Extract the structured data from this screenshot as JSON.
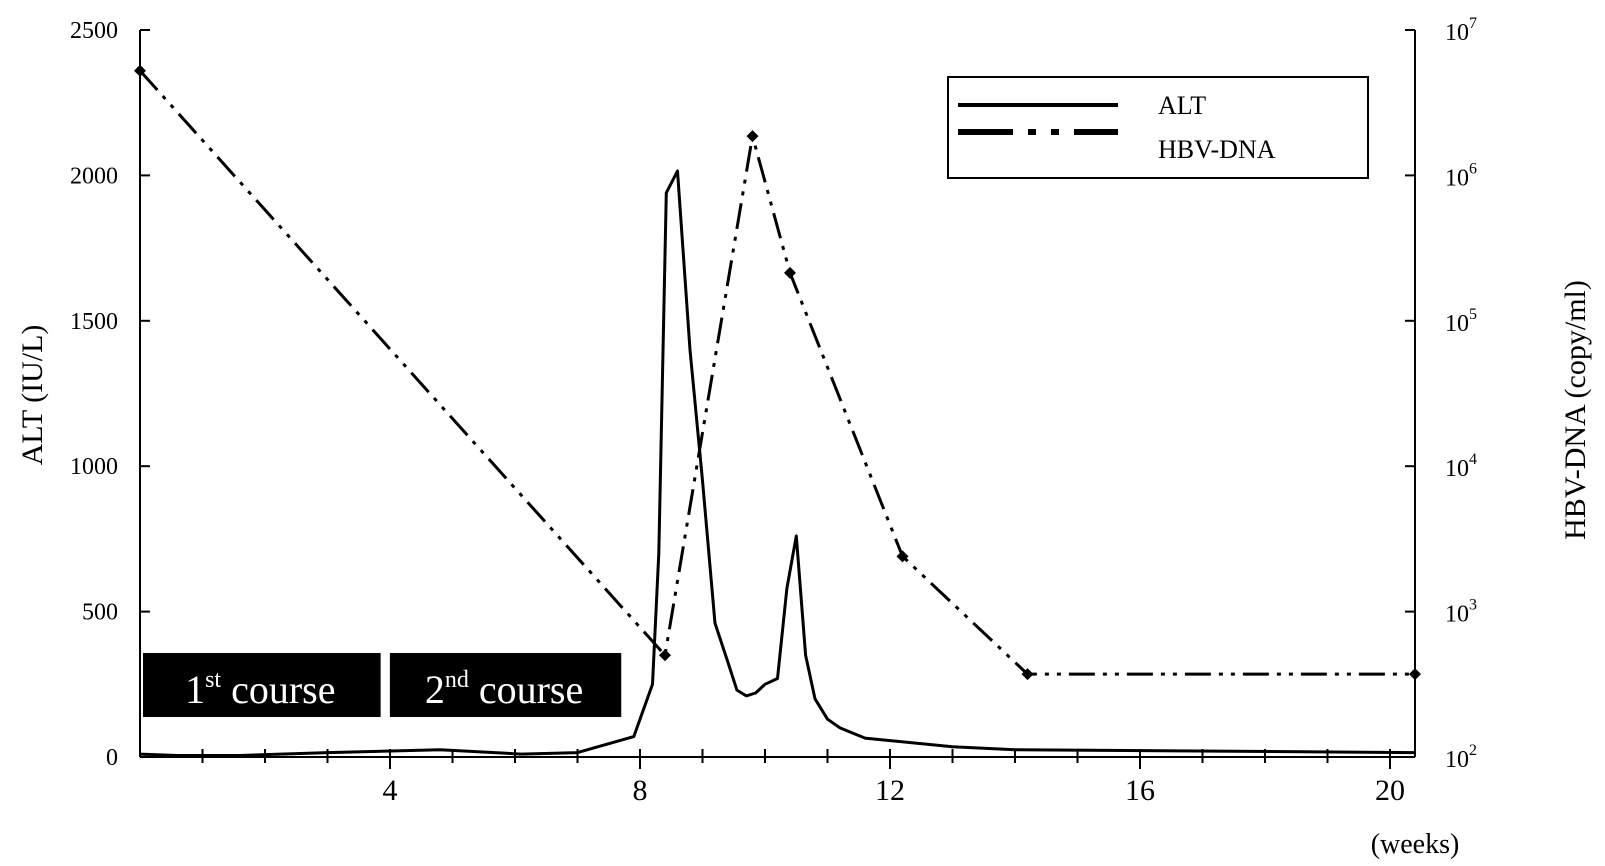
{
  "chart_data": {
    "type": "line",
    "xlabel_unit": "(weeks)",
    "ylabel_left": "ALT (IU/L)",
    "ylabel_right": "HBV-DNA (copy/ml)",
    "xlim": [
      0,
      20.4
    ],
    "ylim_left": [
      0,
      2500
    ],
    "ylim_right_log10": [
      2,
      7
    ],
    "right_axis_scale": "log",
    "x_ticks": [
      4,
      8,
      12,
      16,
      20
    ],
    "x_tick_labels": [
      "4",
      "8",
      "12",
      "16",
      "20"
    ],
    "x_minor_ticks": [
      1,
      2,
      3,
      5,
      6,
      7,
      9,
      10,
      11,
      13,
      14,
      15,
      17,
      18,
      19
    ],
    "y_left_ticks": [
      0,
      500,
      1000,
      1500,
      2000,
      2500
    ],
    "y_left_tick_labels": [
      "0",
      "500",
      "1000",
      "1500",
      "2000",
      "2500"
    ],
    "y_right_ticks_log10": [
      2,
      3,
      4,
      5,
      6,
      7
    ],
    "y_right_tick_base": "10",
    "y_right_tick_exponents": [
      "2",
      "3",
      "4",
      "5",
      "6",
      "7"
    ],
    "legend_position": "top-right",
    "grid": false,
    "series": [
      {
        "name": "ALT",
        "style": "solid",
        "color": "#000000",
        "x": [
          0,
          0.6,
          1.6,
          3.0,
          4.8,
          6.1,
          7.0,
          7.9,
          8.2,
          8.3,
          8.42,
          8.6,
          8.8,
          9.0,
          9.2,
          9.4,
          9.55,
          9.7,
          9.85,
          10.0,
          10.2,
          10.35,
          10.5,
          10.65,
          10.8,
          11.0,
          11.2,
          11.6,
          13.0,
          14.0,
          20.4
        ],
        "values": [
          10,
          5,
          5,
          15,
          25,
          10,
          15,
          70,
          250,
          700,
          1940,
          2015,
          1400,
          950,
          460,
          330,
          230,
          210,
          220,
          250,
          270,
          580,
          760,
          350,
          200,
          130,
          100,
          65,
          35,
          25,
          15
        ]
      },
      {
        "name": "HBV-DNA",
        "style": "dash-dot-dot",
        "color": "#000000",
        "x": [
          0,
          8.4,
          9.8,
          10.4,
          12.2,
          14.2,
          20.4
        ],
        "values_log10": [
          6.72,
          2.7,
          6.27,
          5.33,
          3.38,
          2.57,
          2.57
        ],
        "markers": true
      }
    ],
    "annotations": [
      {
        "base": "1",
        "sup": "st",
        "rest": " course",
        "x_start": 0,
        "x_end": 3.85
      },
      {
        "base": "2",
        "sup": "nd",
        "rest": " course",
        "x_start": 3.95,
        "x_end": 7.7
      }
    ]
  }
}
